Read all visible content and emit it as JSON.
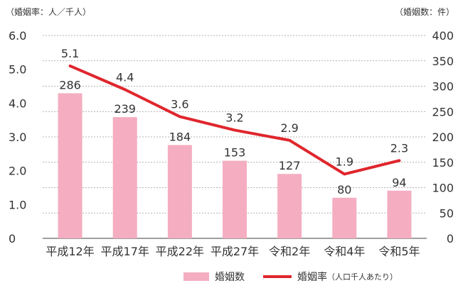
{
  "chart_data": {
    "type": "bar+line",
    "categories": [
      "平成12年",
      "平成17年",
      "平成22年",
      "平成27年",
      "令和2年",
      "令和4年",
      "令和5年"
    ],
    "series": [
      {
        "name": "婚姻数",
        "type": "bar",
        "axis": "right",
        "values": [
          286,
          239,
          184,
          153,
          127,
          80,
          94
        ]
      },
      {
        "name": "婚姻率",
        "type": "line",
        "axis": "left",
        "values": [
          5.1,
          4.4,
          3.6,
          3.2,
          2.9,
          1.9,
          2.3
        ]
      }
    ],
    "left_axis": {
      "unit_label": "（婚姻率：人／千人）",
      "ylim": [
        0,
        6
      ],
      "ticks": [
        "0",
        "1.0",
        "2.0",
        "3.0",
        "4.0",
        "5.0",
        "6.0"
      ]
    },
    "right_axis": {
      "unit_label": "（婚姻数：件）",
      "ylim": [
        0,
        400
      ],
      "ticks": [
        "0",
        "50",
        "100",
        "150",
        "200",
        "250",
        "300",
        "350",
        "400"
      ]
    },
    "grid": "horizontal-dashed",
    "legend": {
      "position": "bottom",
      "bar_label": "婚姻数",
      "line_label": "婚姻率",
      "line_note": "（人口千人あたり）"
    },
    "colors": {
      "bar": "#f4adc1",
      "line": "#e0262d",
      "grid": "#999999"
    }
  }
}
